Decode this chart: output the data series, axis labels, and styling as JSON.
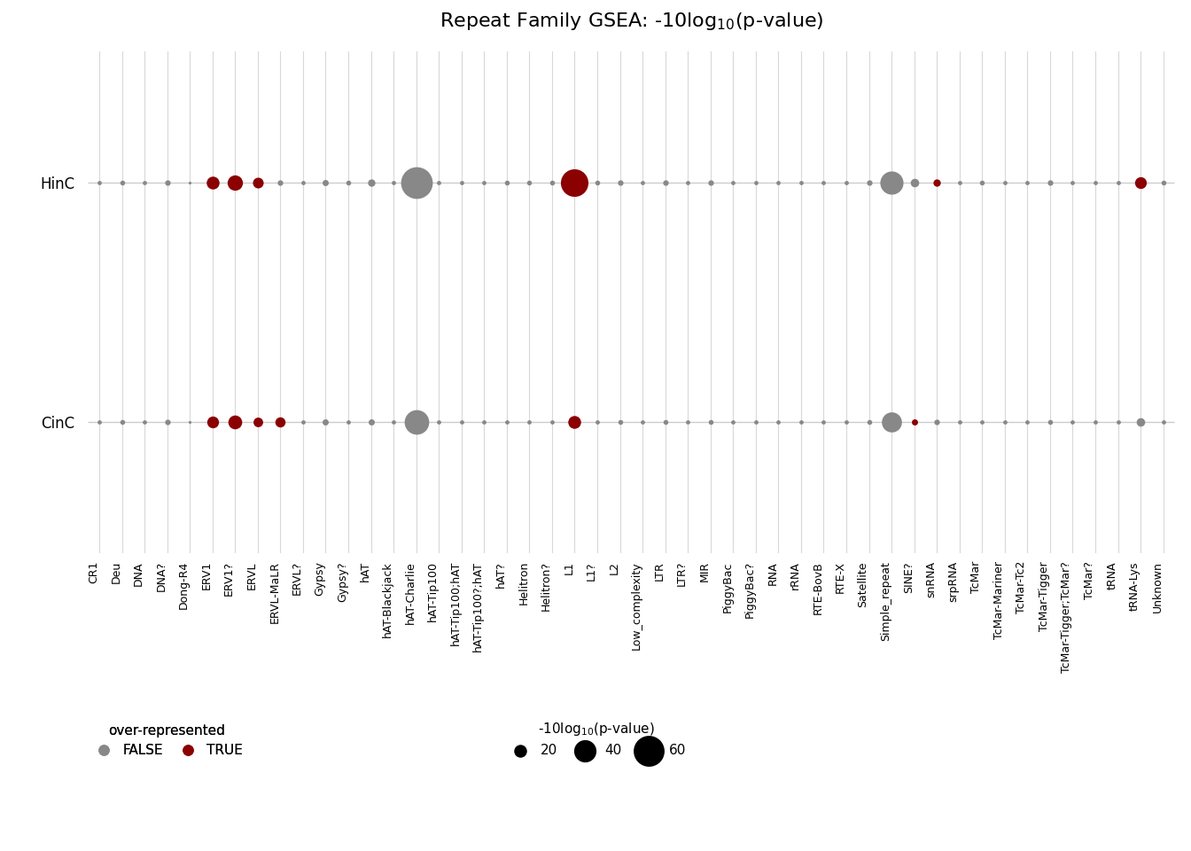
{
  "title": "Repeat Family GSEA: -10log$_{10}$(p-value)",
  "y_labels": [
    "CinC",
    "HinC"
  ],
  "x_categories": [
    "CR1",
    "Deu",
    "DNA",
    "DNA?",
    "Dong-R4",
    "ERV1",
    "ERV1?",
    "ERVL",
    "ERVL-MaLR",
    "ERVL?",
    "Gypsy",
    "Gypsy?",
    "hAT",
    "hAT-Blackjack",
    "hAT-Charlie",
    "hAT-Tip100",
    "hAT-Tip100;hAT",
    "hAT-Tip100?;hAT",
    "hAT?",
    "Helitron",
    "Helitron?",
    "L1",
    "L1?",
    "L2",
    "Low_complexity",
    "LTR",
    "LTR?",
    "MIR",
    "PiggyBac",
    "PiggyBac?",
    "RNA",
    "rRNA",
    "RTE-BovB",
    "RTE-X",
    "Satellite",
    "Simple_repeat",
    "SINE?",
    "snRNA",
    "srpRNA",
    "TcMar",
    "TcMar-Mariner",
    "TcMar-Tc2",
    "TcMar-Tigger",
    "TcMar-Tigger;TcMar?",
    "TcMar?",
    "tRNA",
    "tRNA-Lys",
    "Unknown"
  ],
  "HinC_sizes": [
    5,
    6,
    5,
    7,
    3,
    20,
    25,
    16,
    7,
    5,
    8,
    6,
    10,
    5,
    62,
    5,
    5,
    5,
    6,
    6,
    6,
    52,
    6,
    7,
    5,
    7,
    5,
    7,
    5,
    5,
    5,
    5,
    5,
    5,
    7,
    42,
    12,
    10,
    5,
    6,
    5,
    5,
    7,
    5,
    5,
    5,
    18,
    6
  ],
  "HinC_over_rep": [
    false,
    false,
    false,
    false,
    false,
    true,
    true,
    true,
    false,
    false,
    false,
    false,
    false,
    false,
    false,
    false,
    false,
    false,
    false,
    false,
    false,
    true,
    false,
    false,
    false,
    false,
    false,
    false,
    false,
    false,
    false,
    false,
    false,
    false,
    false,
    false,
    false,
    true,
    false,
    false,
    false,
    false,
    false,
    false,
    false,
    false,
    true,
    false
  ],
  "CinC_sizes": [
    5,
    6,
    5,
    7,
    3,
    18,
    22,
    14,
    15,
    5,
    8,
    5,
    8,
    5,
    45,
    5,
    5,
    5,
    5,
    5,
    5,
    20,
    5,
    6,
    5,
    6,
    5,
    6,
    5,
    5,
    5,
    5,
    5,
    5,
    6,
    35,
    8,
    7,
    5,
    5,
    5,
    5,
    6,
    5,
    5,
    5,
    12,
    5
  ],
  "CinC_over_rep": [
    false,
    false,
    false,
    false,
    false,
    true,
    true,
    true,
    true,
    false,
    false,
    false,
    false,
    false,
    false,
    false,
    false,
    false,
    false,
    false,
    false,
    true,
    false,
    false,
    false,
    false,
    false,
    false,
    false,
    false,
    false,
    false,
    false,
    false,
    false,
    false,
    true,
    false,
    false,
    false,
    false,
    false,
    false,
    false,
    false,
    false,
    false,
    false
  ],
  "color_true": "#8B0000",
  "color_false": "#888888",
  "background_color": "#ffffff",
  "legend_sizes": [
    20,
    40,
    60
  ],
  "grid_color": "#d8d8d8",
  "hline_color": "#cccccc"
}
